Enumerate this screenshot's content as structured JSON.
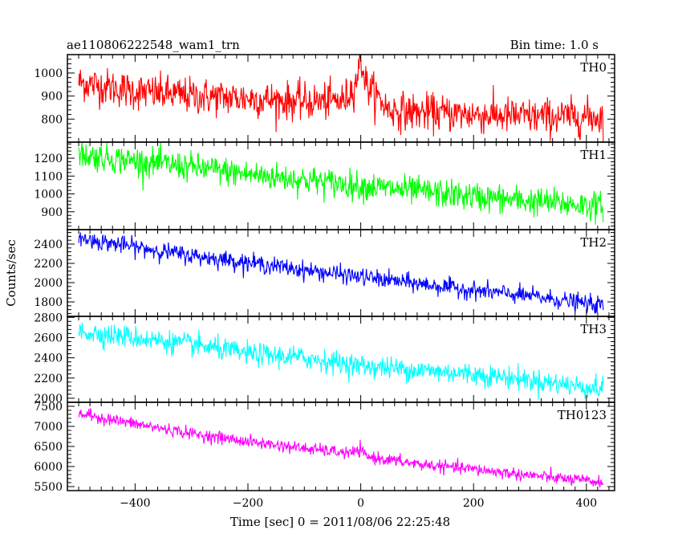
{
  "chart_data": {
    "type": "line",
    "title": "ae110806222548_wam1_trn",
    "subtitle": "Bin time: 1.0 s",
    "xlabel": "Time [sec] 0 = 2011/08/06 22:25:48",
    "ylabel": "Counts/sec",
    "xlim": [
      -520,
      450
    ],
    "x_ticks": [
      -400,
      -200,
      0,
      200,
      400
    ],
    "x_tick_labels": [
      "−400",
      "−200",
      "0",
      "200",
      "400"
    ],
    "x_start": -500,
    "x_end": 430,
    "grid": false,
    "panels": [
      {
        "name": "TH0",
        "color": "#ff0000",
        "ylim": [
          700,
          1080
        ],
        "y_ticks": [
          800,
          900,
          1000
        ],
        "y_tick_labels": [
          "800",
          "900",
          "1000"
        ],
        "trend": {
          "x": [
            -500,
            -400,
            -300,
            -200,
            -100,
            -30,
            -10,
            0,
            10,
            50,
            100,
            200,
            300,
            430
          ],
          "y": [
            960,
            920,
            900,
            890,
            875,
            880,
            950,
            1060,
            950,
            840,
            830,
            820,
            810,
            810
          ]
        },
        "noise": 40
      },
      {
        "name": "TH1",
        "color": "#00ff00",
        "ylim": [
          800,
          1290
        ],
        "y_ticks": [
          900,
          1000,
          1100,
          1200
        ],
        "y_tick_labels": [
          "900",
          "1000",
          "1100",
          "1200"
        ],
        "trend": {
          "x": [
            -500,
            -400,
            -300,
            -200,
            -100,
            0,
            100,
            200,
            300,
            430
          ],
          "y": [
            1220,
            1185,
            1150,
            1110,
            1080,
            1045,
            1015,
            985,
            960,
            930
          ]
        },
        "noise": 40
      },
      {
        "name": "TH2",
        "color": "#0000ff",
        "ylim": [
          1650,
          2550
        ],
        "y_ticks": [
          1800,
          2000,
          2200,
          2400
        ],
        "y_tick_labels": [
          "1800",
          "2000",
          "2200",
          "2400"
        ],
        "trend": {
          "x": [
            -500,
            -400,
            -300,
            -200,
            -100,
            0,
            100,
            200,
            300,
            430
          ],
          "y": [
            2460,
            2370,
            2280,
            2210,
            2130,
            2060,
            1990,
            1920,
            1860,
            1760
          ]
        },
        "noise": 45
      },
      {
        "name": "TH3",
        "color": "#00ffff",
        "ylim": [
          1960,
          2810
        ],
        "y_ticks": [
          2000,
          2200,
          2400,
          2600,
          2800
        ],
        "y_tick_labels": [
          "2000",
          "2200",
          "2400",
          "2600",
          "2800"
        ],
        "trend": {
          "x": [
            -500,
            -400,
            -300,
            -200,
            -100,
            0,
            100,
            200,
            300,
            430
          ],
          "y": [
            2660,
            2600,
            2530,
            2440,
            2400,
            2320,
            2280,
            2240,
            2180,
            2090
          ]
        },
        "noise": 55
      },
      {
        "name": "TH0123",
        "color": "#ff00ff",
        "ylim": [
          5400,
          7600
        ],
        "y_ticks": [
          5500,
          6000,
          6500,
          7000,
          7500
        ],
        "y_tick_labels": [
          "5500",
          "6000",
          "6500",
          "7000",
          "7500"
        ],
        "trend": {
          "x": [
            -500,
            -400,
            -300,
            -200,
            -100,
            -20,
            0,
            10,
            100,
            200,
            300,
            430
          ],
          "y": [
            7320,
            7060,
            6820,
            6620,
            6450,
            6330,
            6400,
            6250,
            6060,
            5930,
            5780,
            5600
          ]
        },
        "noise": 75
      }
    ]
  }
}
